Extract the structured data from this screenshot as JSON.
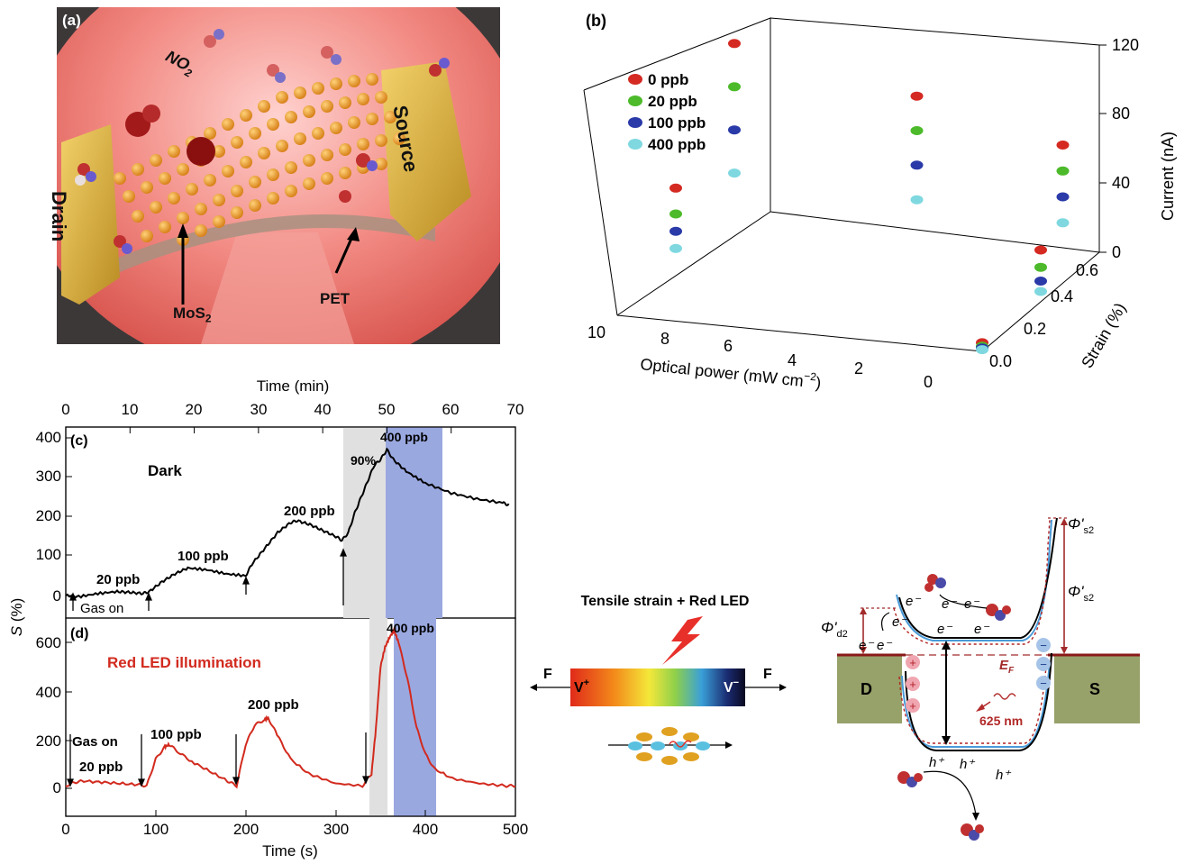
{
  "panel_a": {
    "tag": "(a)",
    "no2": "NO",
    "no2_sub": "2",
    "source": "Source",
    "drain": "Drain",
    "mos2": "MoS",
    "mos2_sub": "2",
    "pet": "PET"
  },
  "panel_b": {
    "tag": "(b)",
    "z_label": "Current (nA)",
    "x_label": "Optical power (mW cm",
    "x_label_sup": "−2",
    "x_label_end": ")",
    "y_label": "Strain (%)",
    "z_ticks": [
      "0",
      "40",
      "80",
      "120"
    ],
    "x_ticks": [
      "10",
      "8",
      "6",
      "4",
      "2",
      "0"
    ],
    "y_ticks": [
      "0.0",
      "0.2",
      "0.4",
      "0.6"
    ],
    "legend": [
      {
        "label": "0 ppb",
        "color": "#d42a22"
      },
      {
        "label": "20 ppb",
        "color": "#4cba2a"
      },
      {
        "label": "100 ppb",
        "color": "#2a3aa8"
      },
      {
        "label": "400 ppb",
        "color": "#7fd8e0"
      }
    ]
  },
  "panel_c": {
    "tag": "(c)",
    "top_axis_title": "Time (min)",
    "top_ticks": [
      "0",
      "10",
      "20",
      "30",
      "40",
      "50",
      "60",
      "70"
    ],
    "y_ticks": [
      "0",
      "100",
      "200",
      "300",
      "400"
    ],
    "condition": "Dark",
    "labels": [
      "20 ppb",
      "100 ppb",
      "200 ppb",
      "400 ppb",
      "90%"
    ],
    "gas_on": "Gas on"
  },
  "panel_d": {
    "tag": "(d)",
    "x_axis_title": "Time (s)",
    "x_ticks": [
      "0",
      "100",
      "200",
      "300",
      "400",
      "500"
    ],
    "y_ticks": [
      "0",
      "200",
      "400",
      "600"
    ],
    "condition": "Red LED illumination",
    "labels": [
      "100 ppb",
      "200 ppb",
      "400 ppb",
      "20 ppb"
    ],
    "gas_on": "Gas on"
  },
  "y_axis_title": "S",
  "y_axis_unit": " (%)",
  "panel_e": {
    "title": "Tensile strain + Red LED",
    "force_left": "F",
    "force_right": "F",
    "v_plus": "V",
    "v_plus_sup": "+",
    "v_minus": "V",
    "v_minus_sup": "−"
  },
  "panel_f": {
    "drain": "D",
    "source": "S",
    "ef": "E",
    "ef_sub": "F",
    "phi_d2": "Φ'",
    "phi_d2_sub": "d2",
    "phi_s2": "Φ'",
    "phi_s2_sub": "s2",
    "wavelength": "625 nm",
    "electron": "e⁻",
    "hole": "h⁺"
  },
  "chart_data": [
    {
      "type": "scatter",
      "title": "",
      "xlabel": "Optical power (mW cm−2)",
      "ylabel": "Strain (%)",
      "zlabel": "Current (nA)",
      "xlim": [
        0,
        10
      ],
      "ylim": [
        0,
        0.6
      ],
      "zlim": [
        0,
        120
      ],
      "series": [
        {
          "name": "0 ppb",
          "points": [
            [
              10,
              0.6,
              100
            ],
            [
              5,
              0.6,
              80
            ],
            [
              1,
              0.6,
              60
            ],
            [
              10,
              0.3,
              45
            ],
            [
              0,
              0.3,
              30
            ],
            [
              0,
              0,
              5
            ]
          ]
        },
        {
          "name": "20 ppb",
          "points": [
            [
              10,
              0.6,
              75
            ],
            [
              5,
              0.6,
              60
            ],
            [
              1,
              0.6,
              45
            ],
            [
              10,
              0.3,
              30
            ],
            [
              0,
              0.3,
              20
            ],
            [
              0,
              0,
              3
            ]
          ]
        },
        {
          "name": "100 ppb",
          "points": [
            [
              10,
              0.6,
              50
            ],
            [
              5,
              0.6,
              40
            ],
            [
              1,
              0.6,
              30
            ],
            [
              10,
              0.3,
              20
            ],
            [
              0,
              0.3,
              12
            ],
            [
              0,
              0,
              2
            ]
          ]
        },
        {
          "name": "400 ppb",
          "points": [
            [
              10,
              0.6,
              25
            ],
            [
              5,
              0.6,
              20
            ],
            [
              1,
              0.6,
              15
            ],
            [
              10,
              0.3,
              10
            ],
            [
              0,
              0.3,
              6
            ],
            [
              0,
              0,
              1
            ]
          ]
        }
      ]
    },
    {
      "type": "line",
      "title": "",
      "xlabel": "Time (min)",
      "ylabel": "S (%)",
      "xlim": [
        0,
        70
      ],
      "ylim": [
        -40,
        420
      ],
      "series": [
        {
          "name": "Dark",
          "x": [
            0,
            2,
            5,
            8,
            10,
            12,
            13,
            15,
            17,
            19,
            22,
            25,
            28,
            29,
            31,
            33,
            35,
            36,
            38,
            40,
            42,
            43,
            44,
            45,
            46,
            47,
            48,
            49,
            50,
            51,
            53,
            56,
            60,
            64,
            68,
            69
          ],
          "y": [
            0,
            -3,
            5,
            10,
            8,
            5,
            10,
            35,
            55,
            70,
            65,
            55,
            50,
            80,
            120,
            160,
            185,
            190,
            180,
            165,
            150,
            140,
            160,
            210,
            250,
            290,
            330,
            345,
            370,
            345,
            315,
            285,
            260,
            245,
            235,
            230
          ]
        }
      ]
    },
    {
      "type": "line",
      "title": "",
      "xlabel": "Time (s)",
      "ylabel": "S (%)",
      "xlim": [
        0,
        500
      ],
      "ylim": [
        -80,
        700
      ],
      "series": [
        {
          "name": "Red LED illumination",
          "x": [
            0,
            10,
            20,
            40,
            60,
            80,
            90,
            100,
            110,
            115,
            125,
            140,
            160,
            180,
            190,
            200,
            210,
            220,
            225,
            235,
            250,
            270,
            300,
            330,
            340,
            345,
            350,
            355,
            360,
            365,
            370,
            380,
            390,
            400,
            410,
            430,
            460,
            490,
            500
          ],
          "y": [
            10,
            25,
            30,
            25,
            20,
            15,
            10,
            120,
            170,
            180,
            150,
            110,
            70,
            30,
            10,
            180,
            260,
            280,
            290,
            220,
            120,
            60,
            20,
            10,
            60,
            250,
            500,
            580,
            620,
            650,
            600,
            450,
            250,
            140,
            80,
            40,
            20,
            10,
            10
          ]
        }
      ]
    }
  ]
}
